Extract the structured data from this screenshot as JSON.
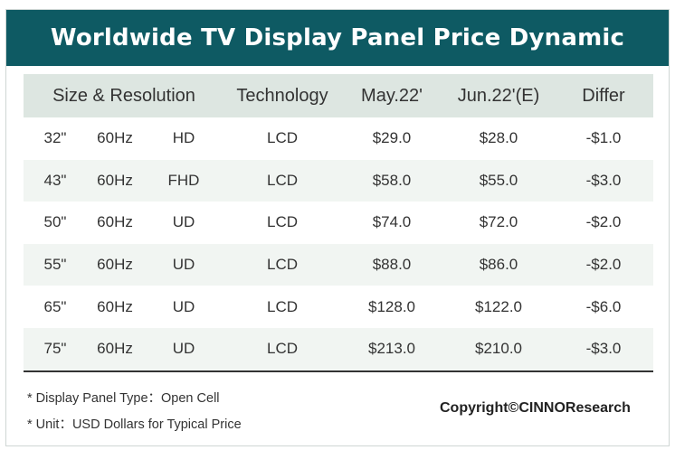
{
  "chart_data": {
    "type": "table",
    "title": "Worldwide TV Display Panel Price Dynamic",
    "columns": [
      "Size & Resolution",
      "Technology",
      "May.22'",
      "Jun.22'(E)",
      "Differ"
    ],
    "rows": [
      {
        "size": "32\"",
        "hz": "60Hz",
        "res": "HD",
        "tech": "LCD",
        "may": "$29.0",
        "jun": "$28.0",
        "differ": "-$1.0"
      },
      {
        "size": "43\"",
        "hz": "60Hz",
        "res": "FHD",
        "tech": "LCD",
        "may": "$58.0",
        "jun": "$55.0",
        "differ": "-$3.0"
      },
      {
        "size": "50\"",
        "hz": "60Hz",
        "res": "UD",
        "tech": "LCD",
        "may": "$74.0",
        "jun": "$72.0",
        "differ": "-$2.0"
      },
      {
        "size": "55\"",
        "hz": "60Hz",
        "res": "UD",
        "tech": "LCD",
        "may": "$88.0",
        "jun": "$86.0",
        "differ": "-$2.0"
      },
      {
        "size": "65\"",
        "hz": "60Hz",
        "res": "UD",
        "tech": "LCD",
        "may": "$128.0",
        "jun": "$122.0",
        "differ": "-$6.0"
      },
      {
        "size": "75\"",
        "hz": "60Hz",
        "res": "UD",
        "tech": "LCD",
        "may": "$213.0",
        "jun": "$210.0",
        "differ": "-$3.0"
      }
    ]
  },
  "notes": {
    "panel_type": "* Display Panel Type：Open Cell",
    "unit": "* Unit：USD Dollars for Typical Price"
  },
  "copyright": "Copyright©CINNOResearch",
  "colors": {
    "title_bar": "#0e5a63",
    "header_bg": "#dde6e1",
    "alt_row_bg": "#f1f5f2"
  }
}
